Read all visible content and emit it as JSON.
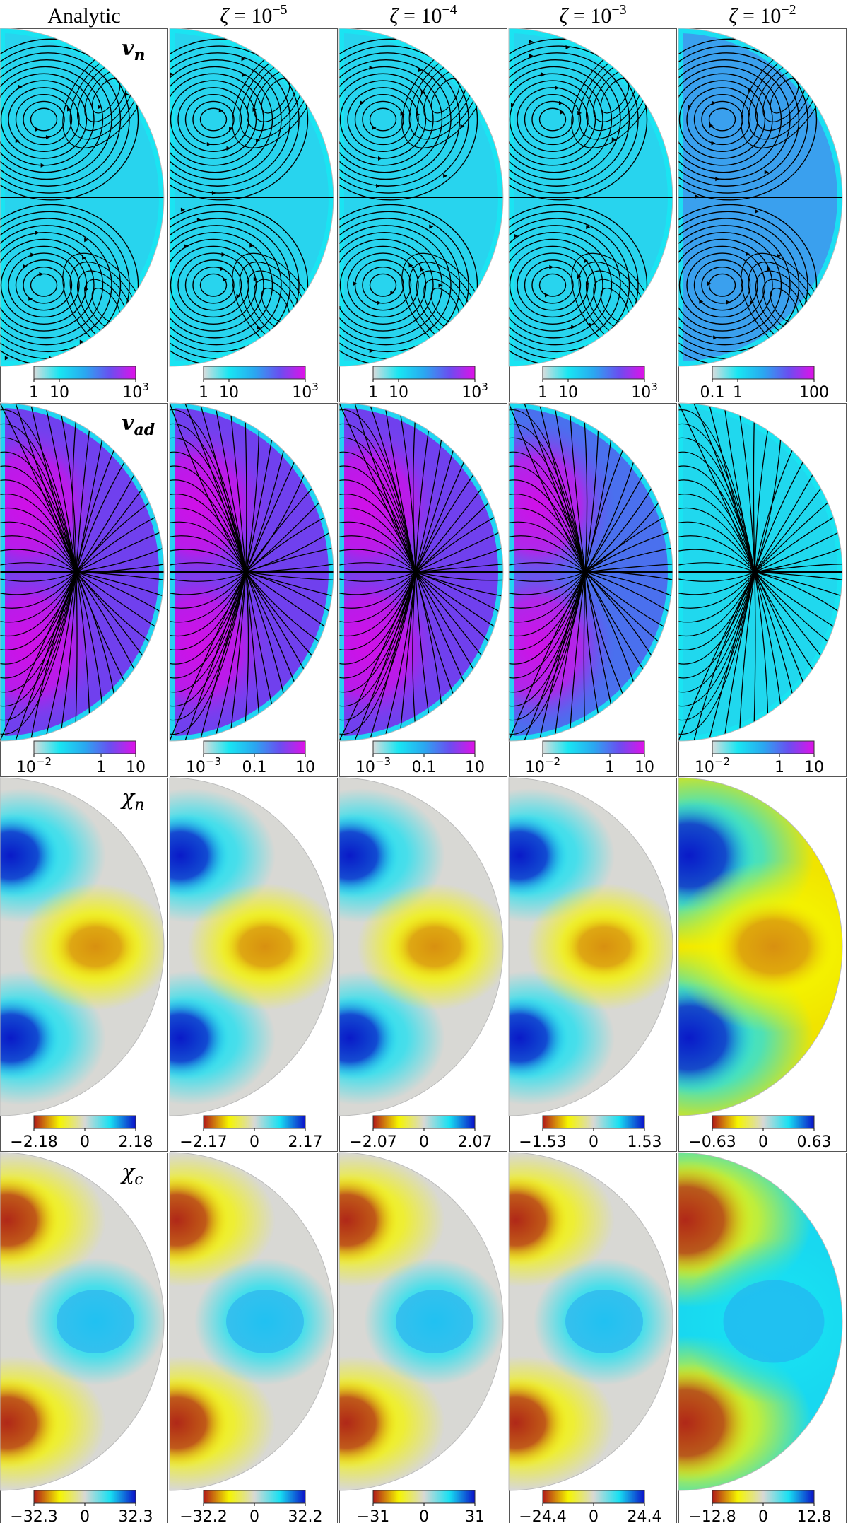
{
  "columns": [
    {
      "id": "c1",
      "title": "Analytic",
      "exp": ""
    },
    {
      "id": "c2",
      "title": "ζ = 10",
      "exp": "−5"
    },
    {
      "id": "c3",
      "title": "ζ = 10",
      "exp": "−4"
    },
    {
      "id": "c4",
      "title": "ζ = 10",
      "exp": "−3"
    },
    {
      "id": "c5",
      "title": "ζ = 10",
      "exp": "−2"
    }
  ],
  "rows": [
    {
      "id": "vn",
      "label": "v",
      "sub": "n",
      "label_style": "bold",
      "kind": "stream",
      "colormap": "speed",
      "colorbars": [
        {
          "ticks": [
            {
              "t": "1",
              "f": 0.0
            },
            {
              "t": "10",
              "f": 0.25
            },
            {
              "t": "10",
              "sup": "3",
              "f": 1.0
            }
          ]
        },
        {
          "ticks": [
            {
              "t": "1",
              "f": 0.0
            },
            {
              "t": "10",
              "f": 0.25
            },
            {
              "t": "10",
              "sup": "3",
              "f": 1.0
            }
          ]
        },
        {
          "ticks": [
            {
              "t": "1",
              "f": 0.0
            },
            {
              "t": "10",
              "f": 0.25
            },
            {
              "t": "10",
              "sup": "3",
              "f": 1.0
            }
          ]
        },
        {
          "ticks": [
            {
              "t": "1",
              "f": 0.0
            },
            {
              "t": "10",
              "f": 0.25
            },
            {
              "t": "10",
              "sup": "3",
              "f": 1.0
            }
          ]
        },
        {
          "ticks": [
            {
              "t": "0.1",
              "f": 0.0
            },
            {
              "t": "1",
              "f": 0.25
            },
            {
              "t": "100",
              "f": 1.0
            }
          ]
        }
      ]
    },
    {
      "id": "vad",
      "label": "v",
      "sub": "ad",
      "label_style": "bold",
      "kind": "stream-radial",
      "colormap": "speed",
      "colorbars": [
        {
          "ticks": [
            {
              "t": "10",
              "sup": "−2",
              "f": 0.0
            },
            {
              "t": "1",
              "f": 0.66
            },
            {
              "t": "10",
              "f": 1.0
            }
          ]
        },
        {
          "ticks": [
            {
              "t": "10",
              "sup": "−3",
              "f": 0.0
            },
            {
              "t": "0.1",
              "f": 0.5
            },
            {
              "t": "10",
              "f": 1.0
            }
          ]
        },
        {
          "ticks": [
            {
              "t": "10",
              "sup": "−3",
              "f": 0.0
            },
            {
              "t": "0.1",
              "f": 0.5
            },
            {
              "t": "10",
              "f": 1.0
            }
          ]
        },
        {
          "ticks": [
            {
              "t": "10",
              "sup": "−2",
              "f": 0.0
            },
            {
              "t": "1",
              "f": 0.66
            },
            {
              "t": "10",
              "f": 1.0
            }
          ]
        },
        {
          "ticks": [
            {
              "t": "10",
              "sup": "−2",
              "f": 0.0
            },
            {
              "t": "1",
              "f": 0.66
            },
            {
              "t": "10",
              "f": 1.0
            }
          ]
        }
      ]
    },
    {
      "id": "chin",
      "label": "χ",
      "sub": "n",
      "label_style": "italic",
      "kind": "field-n",
      "colormap": "diverging",
      "colorbars": [
        {
          "ticks": [
            {
              "t": "−2.18",
              "f": 0.0
            },
            {
              "t": "0",
              "f": 0.5
            },
            {
              "t": "2.18",
              "f": 1.0
            }
          ]
        },
        {
          "ticks": [
            {
              "t": "−2.17",
              "f": 0.0
            },
            {
              "t": "0",
              "f": 0.5
            },
            {
              "t": "2.17",
              "f": 1.0
            }
          ]
        },
        {
          "ticks": [
            {
              "t": "−2.07",
              "f": 0.0
            },
            {
              "t": "0",
              "f": 0.5
            },
            {
              "t": "2.07",
              "f": 1.0
            }
          ]
        },
        {
          "ticks": [
            {
              "t": "−1.53",
              "f": 0.0
            },
            {
              "t": "0",
              "f": 0.5
            },
            {
              "t": "1.53",
              "f": 1.0
            }
          ]
        },
        {
          "ticks": [
            {
              "t": "−0.63",
              "f": 0.0
            },
            {
              "t": "0",
              "f": 0.5
            },
            {
              "t": "0.63",
              "f": 1.0
            }
          ]
        }
      ]
    },
    {
      "id": "chic",
      "label": "χ",
      "sub": "c",
      "label_style": "italic",
      "kind": "field-c",
      "colormap": "diverging",
      "colorbars": [
        {
          "ticks": [
            {
              "t": "−32.3",
              "f": 0.0
            },
            {
              "t": "0",
              "f": 0.5
            },
            {
              "t": "32.3",
              "f": 1.0
            }
          ]
        },
        {
          "ticks": [
            {
              "t": "−32.2",
              "f": 0.0
            },
            {
              "t": "0",
              "f": 0.5
            },
            {
              "t": "32.2",
              "f": 1.0
            }
          ]
        },
        {
          "ticks": [
            {
              "t": "−31",
              "f": 0.0
            },
            {
              "t": "0",
              "f": 0.5
            },
            {
              "t": "31",
              "f": 1.0
            }
          ]
        },
        {
          "ticks": [
            {
              "t": "−24.4",
              "f": 0.0
            },
            {
              "t": "0",
              "f": 0.5
            },
            {
              "t": "24.4",
              "f": 1.0
            }
          ]
        },
        {
          "ticks": [
            {
              "t": "−12.8",
              "f": 0.0
            },
            {
              "t": "0",
              "f": 0.5
            },
            {
              "t": "12.8",
              "f": 1.0
            }
          ]
        }
      ]
    }
  ],
  "colors": {
    "speed": [
      "#d8dcdc",
      "#18e6f2",
      "#2aa8f0",
      "#6a4ef0",
      "#e010e8"
    ],
    "diverging": [
      "#b01818",
      "#f5f500",
      "#d8d8d4",
      "#18e0f2",
      "#0a10c8"
    ]
  }
}
